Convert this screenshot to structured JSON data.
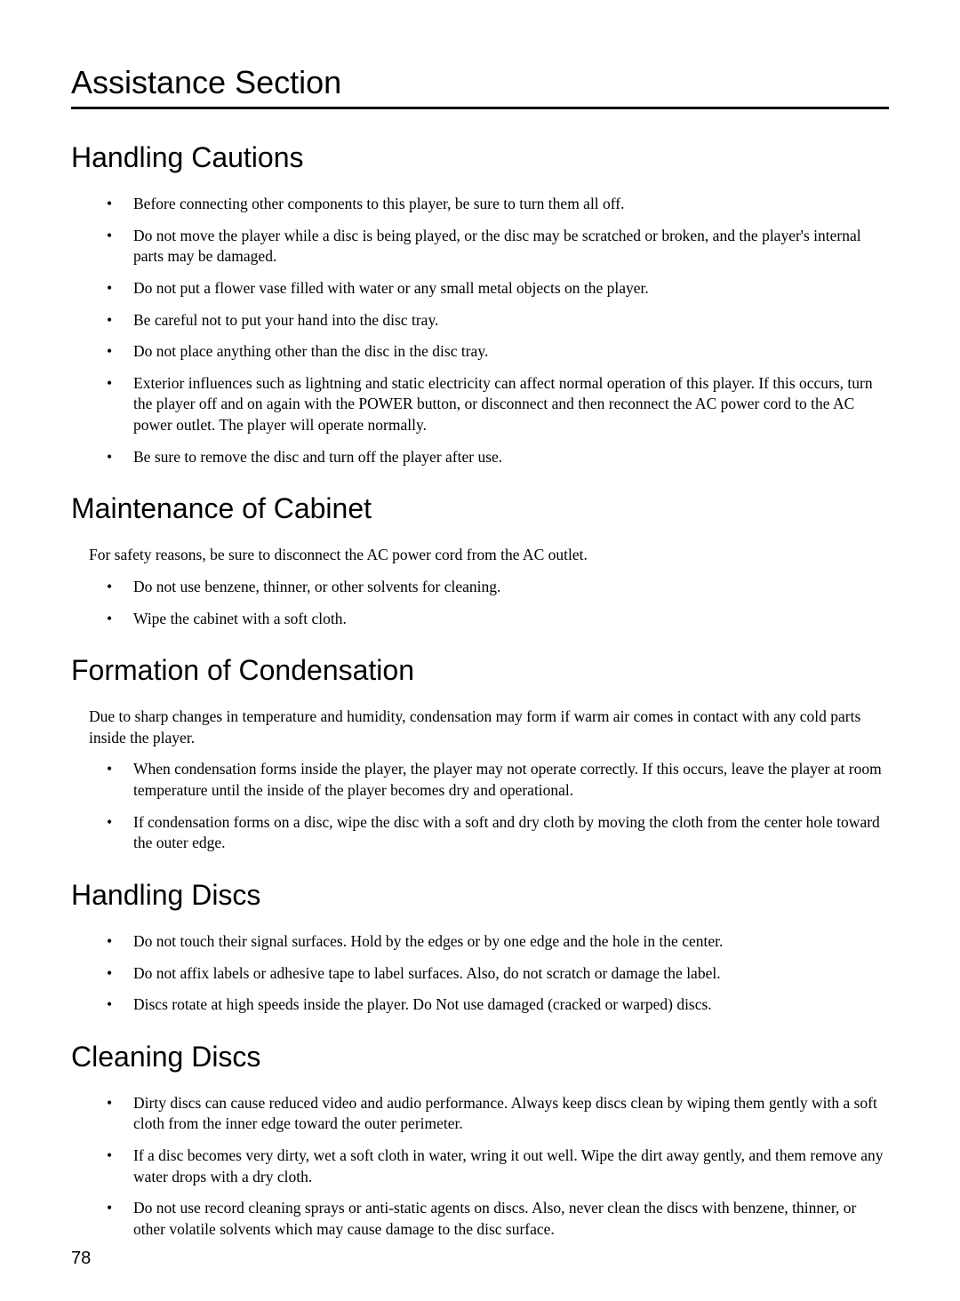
{
  "page": {
    "number": "78",
    "background_color": "#ffffff",
    "text_color": "#000000",
    "rule_color": "#000000",
    "body_font": "Times New Roman",
    "heading_font": "Arial",
    "section_title_fontsize": 36,
    "subheading_fontsize": 32,
    "body_fontsize": 17.5
  },
  "section_title": "Assistance Section",
  "sections": [
    {
      "heading": "Handling Cautions",
      "intro": null,
      "bullets": [
        "Before connecting other components to this player, be sure to turn them all off.",
        "Do not move the player while a disc is being played, or the disc may be scratched or broken, and the player's internal parts may be damaged.",
        "Do not put a flower vase filled with water or any small metal objects on the player.",
        "Be careful not to put your hand into the disc tray.",
        "Do not place anything other than the disc in the disc tray.",
        "Exterior influences such as lightning and static electricity can affect normal operation of this player. If this occurs, turn the player off and on again with the POWER button, or disconnect and then reconnect the AC power cord to the AC power outlet. The player will operate normally.",
        "Be sure to remove the disc and turn off the player after use."
      ]
    },
    {
      "heading": "Maintenance of Cabinet",
      "intro": "For safety reasons, be sure to disconnect the AC power cord from the AC outlet.",
      "bullets": [
        "Do not use benzene, thinner, or other solvents for cleaning.",
        "Wipe the cabinet with a soft cloth."
      ]
    },
    {
      "heading": "Formation of Condensation",
      "intro": "Due to sharp changes in temperature and humidity, condensation may form if warm air comes in contact with any cold parts inside the player.",
      "bullets": [
        "When condensation forms inside the player, the player may not operate correctly. If this occurs, leave the player at room temperature until the inside of the player becomes dry and operational.",
        "If condensation forms on a disc, wipe the disc with a soft and dry cloth by moving the cloth from the center hole toward the outer edge."
      ]
    },
    {
      "heading": "Handling Discs",
      "intro": null,
      "bullets": [
        "Do not touch their signal surfaces. Hold by the edges or by one edge and the hole in the center.",
        "Do not affix labels or adhesive tape to label surfaces. Also, do not scratch or damage the label.",
        "Discs rotate at high speeds inside the player. Do Not use damaged (cracked or warped) discs."
      ]
    },
    {
      "heading": "Cleaning Discs",
      "intro": null,
      "bullets": [
        "Dirty discs can cause reduced video and audio performance. Always keep discs clean by wiping them gently with a soft cloth from the inner edge toward the outer perimeter.",
        "If a disc becomes very dirty, wet a soft cloth in water, wring it out well. Wipe the dirt away gently, and them remove any water drops with a dry cloth.",
        "Do not use record cleaning sprays or anti-static agents on discs. Also, never clean the discs with benzene, thinner, or other volatile solvents which may cause damage to the disc surface."
      ]
    }
  ]
}
